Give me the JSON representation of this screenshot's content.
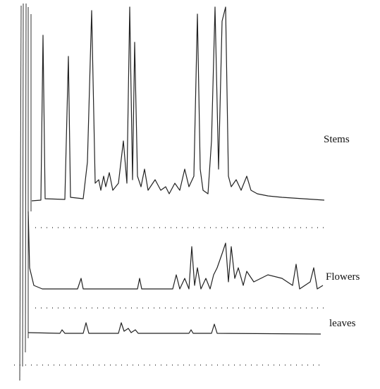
{
  "labels": [
    "Stems",
    "Flowers",
    "leaves"
  ]
}
